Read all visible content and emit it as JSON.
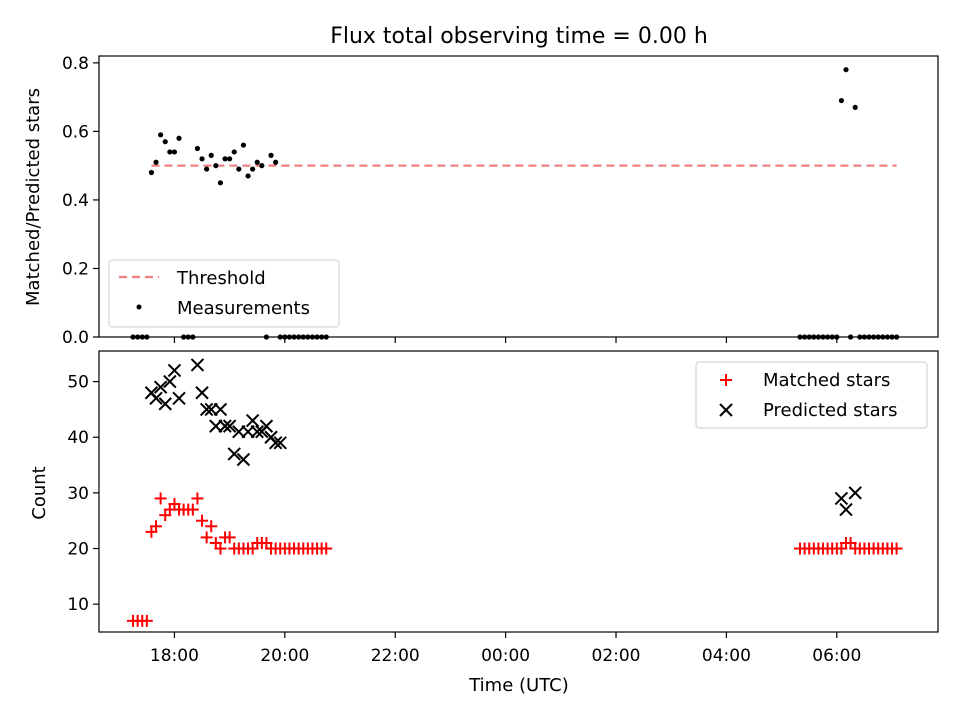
{
  "chart_data": [
    {
      "type": "scatter",
      "title": "Flux total observing time = 0.00 h",
      "xlabel": "",
      "ylabel": "Matched/Predicted stars",
      "ylim": [
        0,
        0.82
      ],
      "yticks": [
        0.0,
        0.2,
        0.4,
        0.6,
        0.8
      ],
      "ytick_labels": [
        "0.0",
        "0.2",
        "0.4",
        "0.6",
        "0.8"
      ],
      "legend_position": "lower-left",
      "series": [
        {
          "name": "Threshold",
          "kind": "dashed-line",
          "color": "#f08080",
          "x": [
            "17:35",
            "07:05"
          ],
          "y": [
            0.5,
            0.5
          ]
        },
        {
          "name": "Measurements",
          "kind": "points",
          "color": "#000000",
          "x": [
            "17:15",
            "17:20",
            "17:25",
            "17:30",
            "17:35",
            "17:40",
            "17:45",
            "17:50",
            "17:55",
            "18:00",
            "18:05",
            "18:10",
            "18:15",
            "18:20",
            "18:25",
            "18:30",
            "18:35",
            "18:40",
            "18:45",
            "18:50",
            "18:55",
            "19:00",
            "19:05",
            "19:10",
            "19:15",
            "19:20",
            "19:25",
            "19:30",
            "19:35",
            "19:40",
            "19:45",
            "19:50",
            "19:55",
            "20:00",
            "20:05",
            "20:10",
            "20:15",
            "20:20",
            "20:25",
            "20:30",
            "20:35",
            "20:40",
            "20:45",
            "05:20",
            "05:25",
            "05:30",
            "05:35",
            "05:40",
            "05:45",
            "05:50",
            "05:55",
            "06:00",
            "06:05",
            "06:10",
            "06:15",
            "06:20",
            "06:25",
            "06:30",
            "06:35",
            "06:40",
            "06:45",
            "06:50",
            "06:55",
            "07:00",
            "07:05"
          ],
          "y": [
            0.0,
            0.0,
            0.0,
            0.0,
            0.48,
            0.51,
            0.59,
            0.57,
            0.54,
            0.54,
            0.58,
            0.0,
            0.0,
            0.0,
            0.55,
            0.52,
            0.49,
            0.53,
            0.5,
            0.45,
            0.52,
            0.52,
            0.54,
            0.49,
            0.56,
            0.47,
            0.49,
            0.51,
            0.5,
            0.0,
            0.53,
            0.51,
            0.0,
            0.0,
            0.0,
            0.0,
            0.0,
            0.0,
            0.0,
            0.0,
            0.0,
            0.0,
            0.0,
            0.0,
            0.0,
            0.0,
            0.0,
            0.0,
            0.0,
            0.0,
            0.0,
            0.0,
            0.69,
            0.78,
            0.0,
            0.67,
            0.0,
            0.0,
            0.0,
            0.0,
            0.0,
            0.0,
            0.0,
            0.0,
            0.0
          ]
        }
      ]
    },
    {
      "type": "scatter",
      "title": "",
      "xlabel": "Time (UTC)",
      "ylabel": "Count",
      "ylim": [
        5,
        55.5
      ],
      "yticks": [
        10,
        20,
        30,
        40,
        50
      ],
      "ytick_labels": [
        "10",
        "20",
        "30",
        "40",
        "50"
      ],
      "xticks": [
        "18:00",
        "20:00",
        "22:00",
        "00:00",
        "02:00",
        "04:00",
        "06:00"
      ],
      "xlim": [
        "16:38",
        "07:50"
      ],
      "legend_position": "upper-right",
      "series": [
        {
          "name": "Matched stars",
          "marker": "plus",
          "color": "#ff0000",
          "x": [
            "17:15",
            "17:20",
            "17:25",
            "17:30",
            "17:35",
            "17:40",
            "17:45",
            "17:50",
            "17:55",
            "18:00",
            "18:05",
            "18:10",
            "18:15",
            "18:20",
            "18:25",
            "18:30",
            "18:35",
            "18:40",
            "18:45",
            "18:50",
            "18:55",
            "19:00",
            "19:05",
            "19:10",
            "19:15",
            "19:20",
            "19:25",
            "19:30",
            "19:35",
            "19:40",
            "19:45",
            "19:50",
            "19:55",
            "20:00",
            "20:05",
            "20:10",
            "20:15",
            "20:20",
            "20:25",
            "20:30",
            "20:35",
            "20:40",
            "20:45",
            "05:20",
            "05:25",
            "05:30",
            "05:35",
            "05:40",
            "05:45",
            "05:50",
            "05:55",
            "06:00",
            "06:05",
            "06:10",
            "06:15",
            "06:20",
            "06:25",
            "06:30",
            "06:35",
            "06:40",
            "06:45",
            "06:50",
            "06:55",
            "07:00",
            "07:05"
          ],
          "y": [
            7,
            7,
            7,
            7,
            23,
            24,
            29,
            26,
            27,
            28,
            27,
            27,
            27,
            27,
            29,
            25,
            22,
            24,
            21,
            20,
            22,
            22,
            20,
            20,
            20,
            20,
            20,
            21,
            21,
            21,
            20,
            20,
            20,
            20,
            20,
            20,
            20,
            20,
            20,
            20,
            20,
            20,
            20,
            20,
            20,
            20,
            20,
            20,
            20,
            20,
            20,
            20,
            20,
            21,
            21,
            20,
            20,
            20,
            20,
            20,
            20,
            20,
            20,
            20,
            20
          ]
        },
        {
          "name": "Predicted stars",
          "marker": "x",
          "color": "#000000",
          "x": [
            "17:35",
            "17:40",
            "17:45",
            "17:50",
            "17:55",
            "18:00",
            "18:05",
            "18:25",
            "18:30",
            "18:35",
            "18:40",
            "18:45",
            "18:50",
            "18:55",
            "19:00",
            "19:05",
            "19:10",
            "19:15",
            "19:20",
            "19:25",
            "19:30",
            "19:35",
            "19:40",
            "19:45",
            "19:50",
            "19:55",
            "06:05",
            "06:10",
            "06:20"
          ],
          "y": [
            48,
            47,
            49,
            46,
            50,
            52,
            47,
            53,
            48,
            45,
            45,
            42,
            45,
            42,
            42,
            37,
            41,
            36,
            41,
            43,
            41,
            41,
            42,
            40,
            39,
            39,
            29,
            27,
            30
          ]
        }
      ]
    }
  ]
}
